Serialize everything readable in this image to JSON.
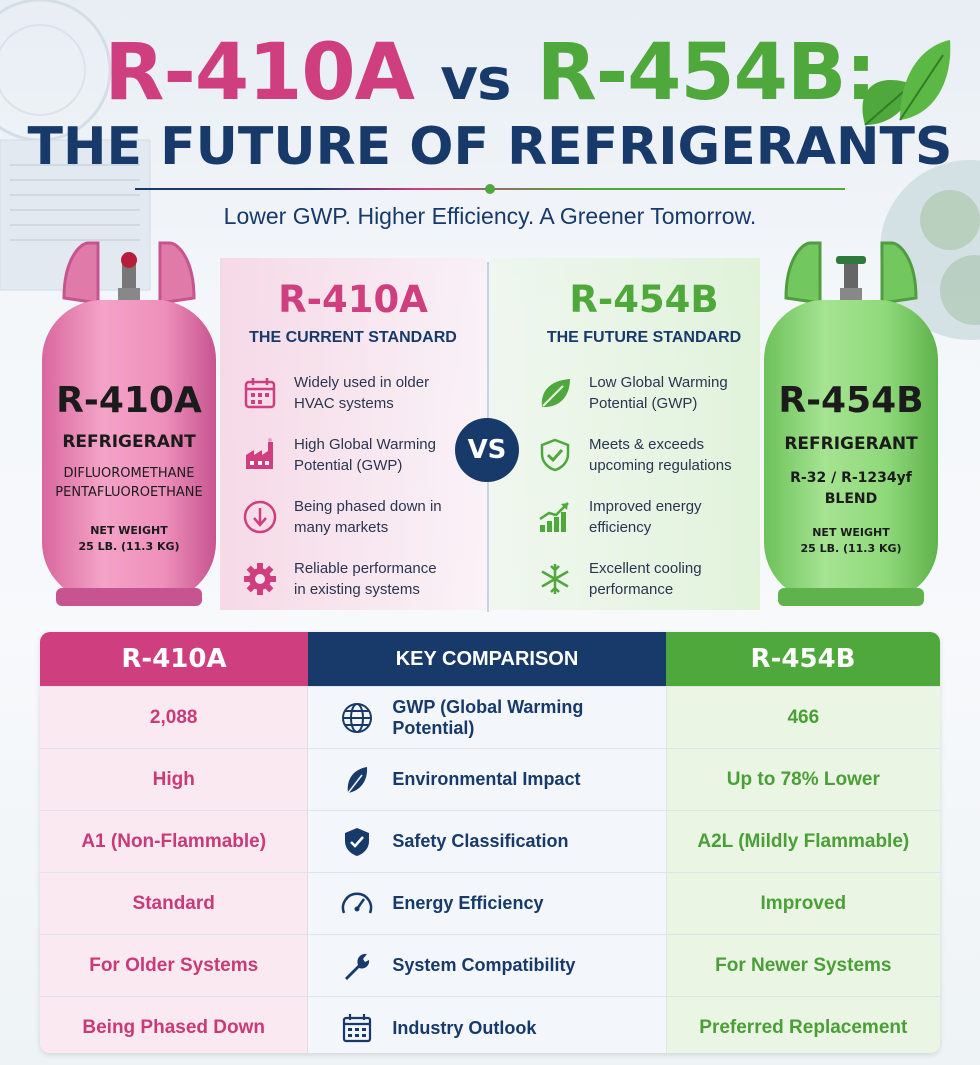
{
  "header": {
    "title_left": "R-410A",
    "title_vs": "vs",
    "title_right": "R-454B:",
    "subtitle": "THE FUTURE OF REFRIGERANTS",
    "tagline": "Lower GWP. Higher Efficiency. A Greener Tomorrow."
  },
  "colors": {
    "pink": "#cf3f7f",
    "navy": "#173a6b",
    "green": "#4fa83b"
  },
  "left_cylinder": {
    "name": "R-410A",
    "type": "REFRIGERANT",
    "composition_1": "DIFLUOROMETHANE",
    "composition_2": "PENTAFLUOROETHANE",
    "weight_label": "NET WEIGHT",
    "weight": "25 LB. (11.3 KG)"
  },
  "right_cylinder": {
    "name": "R-454B",
    "type": "REFRIGERANT",
    "composition_1": "R-32 / R-1234yf",
    "composition_2": "BLEND",
    "weight_label": "NET WEIGHT",
    "weight": "25 LB. (11.3 KG)"
  },
  "left_panel": {
    "title": "R-410A",
    "subtitle": "THE CURRENT STANDARD",
    "features": [
      {
        "icon": "calendar-icon",
        "text": "Widely used in older HVAC systems"
      },
      {
        "icon": "factory-icon",
        "text": "High Global Warming Potential (GWP)"
      },
      {
        "icon": "arrow-down-circle-icon",
        "text": "Being phased down in many markets"
      },
      {
        "icon": "gear-icon",
        "text": "Reliable performance in existing systems"
      }
    ]
  },
  "right_panel": {
    "title": "R-454B",
    "subtitle": "THE FUTURE STANDARD",
    "features": [
      {
        "icon": "leaf-icon",
        "text": "Low Global Warming Potential (GWP)"
      },
      {
        "icon": "shield-check-icon",
        "text": "Meets & exceeds upcoming regulations"
      },
      {
        "icon": "growth-chart-icon",
        "text": "Improved energy efficiency"
      },
      {
        "icon": "snowflake-icon",
        "text": "Excellent cooling performance"
      }
    ]
  },
  "vs_badge": "VS",
  "table": {
    "header_left": "R-410A",
    "header_middle": "KEY COMPARISON",
    "header_right": "R-454B",
    "rows": [
      {
        "left": "2,088",
        "icon": "globe-icon",
        "label": "GWP (Global Warming Potential)",
        "right": "466"
      },
      {
        "left": "High",
        "icon": "leaf-icon",
        "label": "Environmental Impact",
        "right": "Up to 78% Lower"
      },
      {
        "left": "A1 (Non-Flammable)",
        "icon": "shield-check-icon",
        "label": "Safety Classification",
        "right": "A2L (Mildly Flammable)"
      },
      {
        "left": "Standard",
        "icon": "gauge-icon",
        "label": "Energy Efficiency",
        "right": "Improved"
      },
      {
        "left": "For Older Systems",
        "icon": "wrench-icon",
        "label": "System Compatibility",
        "right": "For Newer Systems"
      },
      {
        "left": "Being Phased Down",
        "icon": "calendar-icon",
        "label": "Industry Outlook",
        "right": "Preferred Replacement"
      }
    ]
  }
}
